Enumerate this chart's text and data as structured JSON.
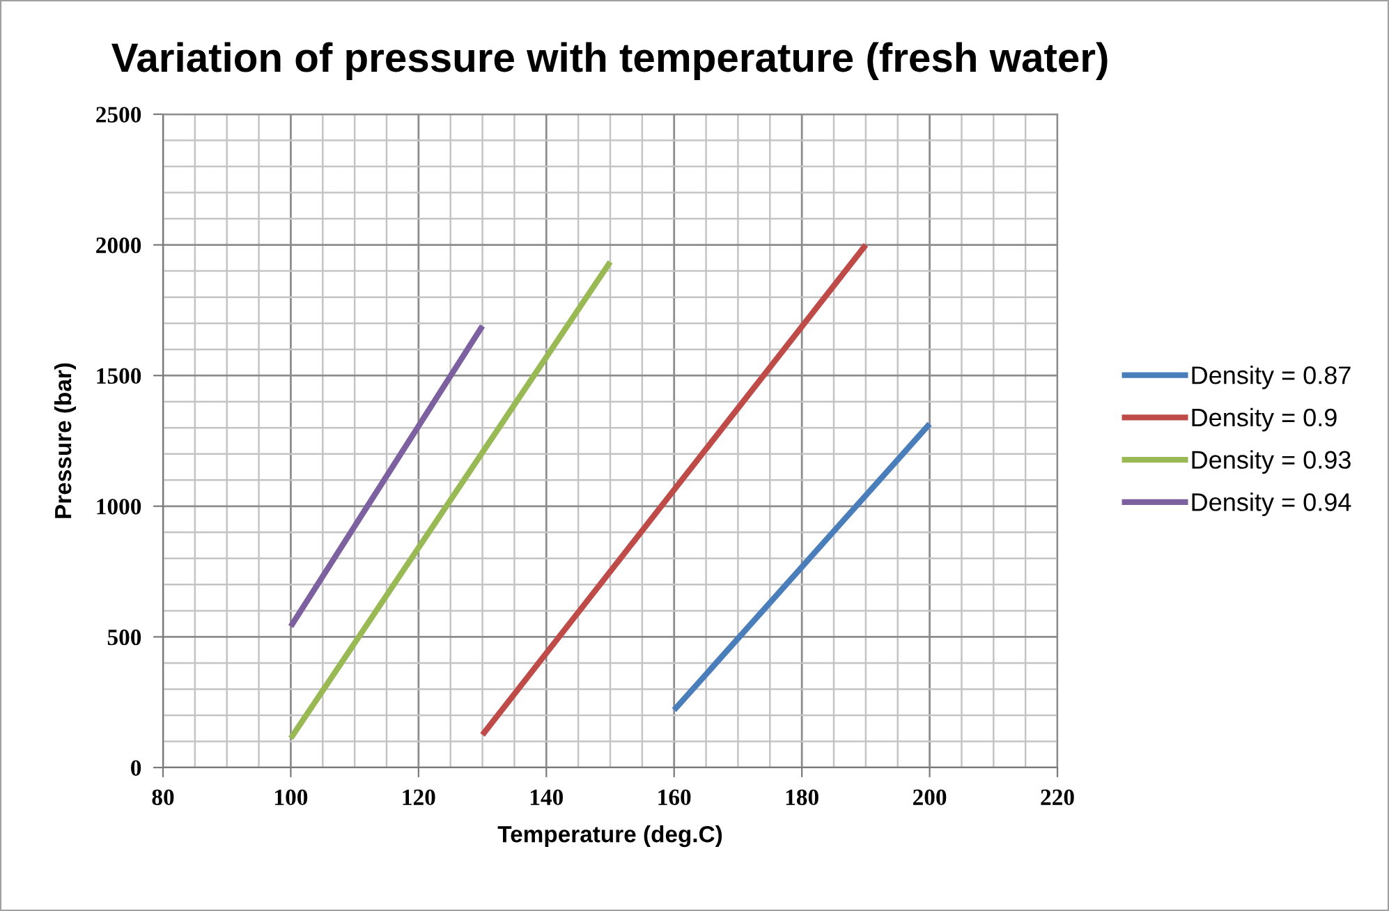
{
  "chart_data": {
    "type": "line",
    "title": "Variation of pressure with temperature (fresh water)",
    "xlabel": "Temperature (deg.C)",
    "ylabel": "Pressure (bar)",
    "series": [
      {
        "name": "Density = 0.87",
        "color": "#4a7ebb",
        "x": [
          160,
          200
        ],
        "values": [
          220,
          1315
        ]
      },
      {
        "name": "Density = 0.9",
        "color": "#be4b48",
        "x": [
          130,
          190
        ],
        "values": [
          125,
          2000
        ]
      },
      {
        "name": "Density = 0.93",
        "color": "#98b954",
        "x": [
          100,
          150
        ],
        "values": [
          112,
          1935
        ]
      },
      {
        "name": "Density = 0.94",
        "color": "#7d60a0",
        "x": [
          100,
          130
        ],
        "values": [
          540,
          1690
        ]
      }
    ],
    "xlim": [
      80,
      220
    ],
    "xticks": [
      80,
      100,
      120,
      140,
      160,
      180,
      200,
      220
    ],
    "ylim": [
      0,
      2500
    ],
    "yticks": [
      0,
      500,
      1000,
      1500,
      2000,
      2500
    ],
    "grid": true,
    "legend": "right",
    "marker": "none",
    "line_style": "solid"
  }
}
